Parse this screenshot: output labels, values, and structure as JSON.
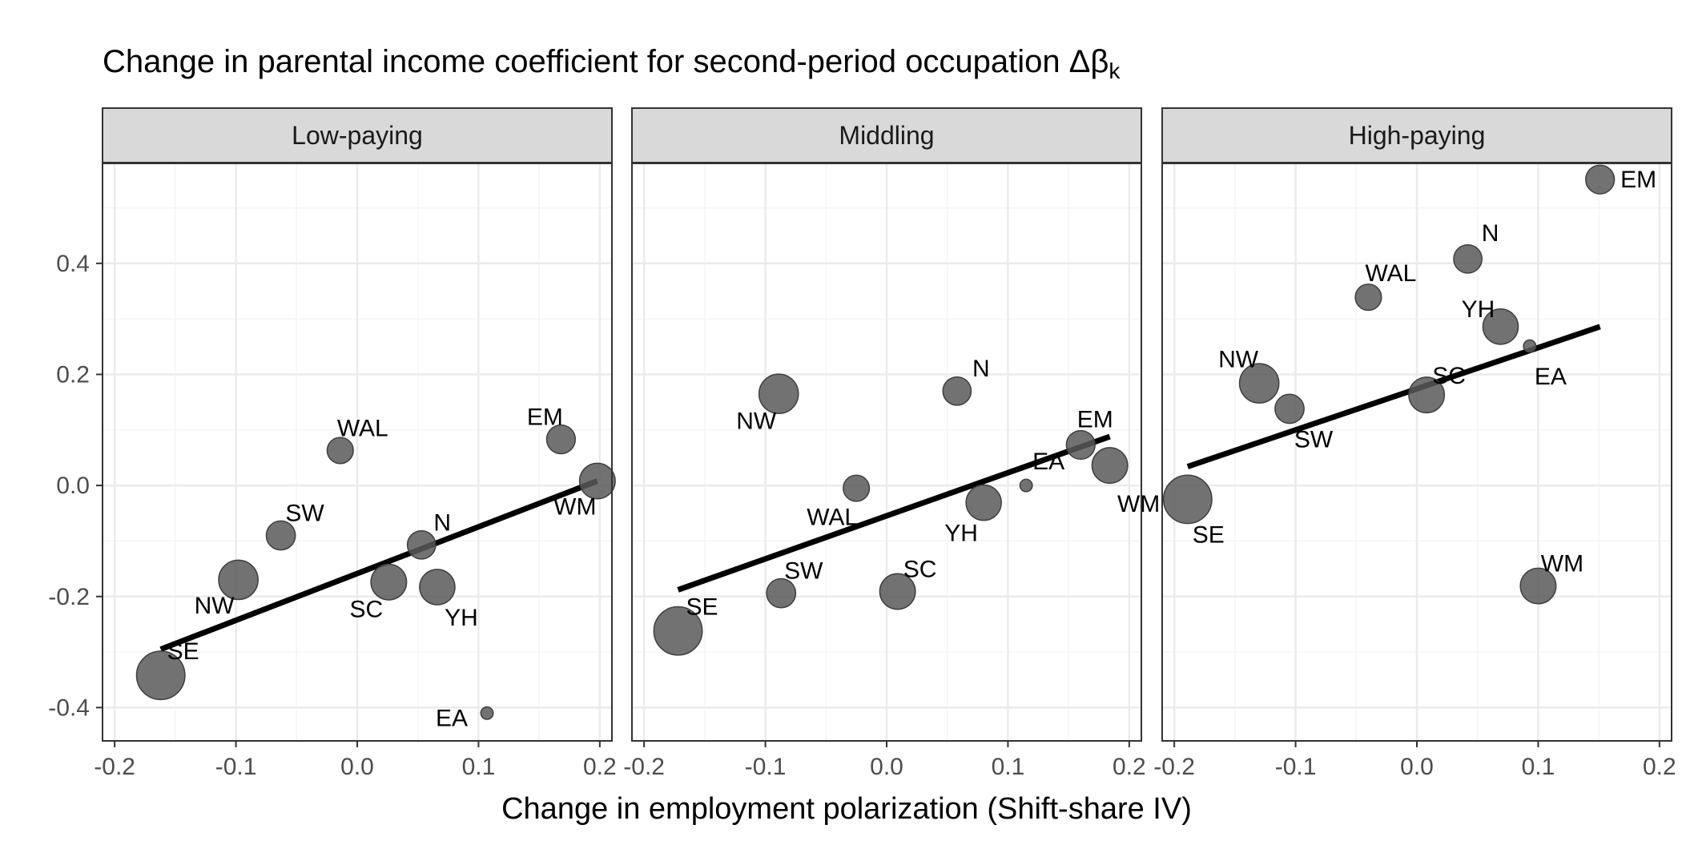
{
  "chart_data": {
    "type": "scatter",
    "title": "Change in parental income coefficient for second-period occupation Δβ",
    "title_subscript": "k",
    "xlabel": "Change in employment polarization (Shift-share IV)",
    "ylabel": "",
    "xlim": [
      -0.21,
      0.21
    ],
    "ylim": [
      -0.46,
      0.58
    ],
    "x_ticks": [
      -0.2,
      -0.1,
      0.0,
      0.1,
      0.2
    ],
    "x_tick_labels": [
      "-0.2",
      "-0.1",
      "0.0",
      "0.1",
      "0.2"
    ],
    "y_ticks": [
      -0.4,
      -0.2,
      0.0,
      0.2,
      0.4
    ],
    "y_tick_labels": [
      "-0.4",
      "-0.2",
      "0.0",
      "0.2",
      "0.4"
    ],
    "grid": true,
    "colors": {
      "point": "#595959",
      "fit_line": "#000000",
      "strip_fill": "#d9d9d9",
      "grid_major": "#ebebeb",
      "grid_minor": "#f5f5f5",
      "border": "#333333"
    },
    "panels": [
      {
        "name": "Low-paying",
        "fit": {
          "x": [
            -0.162,
            0.198
          ],
          "y": [
            -0.295,
            0.008
          ]
        },
        "points": [
          {
            "label": "SE",
            "x": -0.162,
            "y": -0.342,
            "size": 10.0
          },
          {
            "label": "NW",
            "x": -0.098,
            "y": -0.17,
            "size": 6.3
          },
          {
            "label": "SW",
            "x": -0.063,
            "y": -0.09,
            "size": 3.1
          },
          {
            "label": "WAL",
            "x": -0.014,
            "y": 0.063,
            "size": 2.4
          },
          {
            "label": "SC",
            "x": 0.026,
            "y": -0.174,
            "size": 5.0
          },
          {
            "label": "N",
            "x": 0.053,
            "y": -0.107,
            "size": 2.9
          },
          {
            "label": "YH",
            "x": 0.066,
            "y": -0.183,
            "size": 4.9
          },
          {
            "label": "EA",
            "x": 0.107,
            "y": -0.41,
            "size": 0.3
          },
          {
            "label": "EM",
            "x": 0.168,
            "y": 0.083,
            "size": 3.0
          },
          {
            "label": "WM",
            "x": 0.198,
            "y": 0.008,
            "size": 5.0
          }
        ]
      },
      {
        "name": "Middling",
        "fit": {
          "x": [
            -0.172,
            0.184
          ],
          "y": [
            -0.188,
            0.088
          ]
        },
        "points": [
          {
            "label": "SE",
            "x": -0.172,
            "y": -0.262,
            "size": 10.0
          },
          {
            "label": "NW",
            "x": -0.089,
            "y": 0.165,
            "size": 6.3
          },
          {
            "label": "SW",
            "x": -0.087,
            "y": -0.194,
            "size": 3.1
          },
          {
            "label": "WAL",
            "x": -0.025,
            "y": -0.005,
            "size": 2.4
          },
          {
            "label": "SC",
            "x": 0.009,
            "y": -0.191,
            "size": 5.0
          },
          {
            "label": "N",
            "x": 0.058,
            "y": 0.17,
            "size": 2.9
          },
          {
            "label": "YH",
            "x": 0.08,
            "y": -0.031,
            "size": 4.9
          },
          {
            "label": "EA",
            "x": 0.115,
            "y": 0.0,
            "size": 0.3
          },
          {
            "label": "EM",
            "x": 0.16,
            "y": 0.073,
            "size": 3.0
          },
          {
            "label": "WM",
            "x": 0.184,
            "y": 0.036,
            "size": 5.0
          }
        ]
      },
      {
        "name": "High-paying",
        "fit": {
          "x": [
            -0.189,
            0.151
          ],
          "y": [
            0.034,
            0.286
          ]
        },
        "points": [
          {
            "label": "SE",
            "x": -0.189,
            "y": -0.025,
            "size": 10.0
          },
          {
            "label": "NW",
            "x": -0.13,
            "y": 0.184,
            "size": 6.3
          },
          {
            "label": "SW",
            "x": -0.105,
            "y": 0.138,
            "size": 3.1
          },
          {
            "label": "WAL",
            "x": -0.04,
            "y": 0.339,
            "size": 2.4
          },
          {
            "label": "SC",
            "x": 0.008,
            "y": 0.163,
            "size": 5.0
          },
          {
            "label": "N",
            "x": 0.042,
            "y": 0.408,
            "size": 2.9
          },
          {
            "label": "YH",
            "x": 0.069,
            "y": 0.286,
            "size": 4.9
          },
          {
            "label": "EA",
            "x": 0.093,
            "y": 0.251,
            "size": 0.3
          },
          {
            "label": "WM",
            "x": 0.1,
            "y": -0.181,
            "size": 5.0
          },
          {
            "label": "EM",
            "x": 0.151,
            "y": 0.551,
            "size": 3.0
          }
        ]
      }
    ]
  }
}
